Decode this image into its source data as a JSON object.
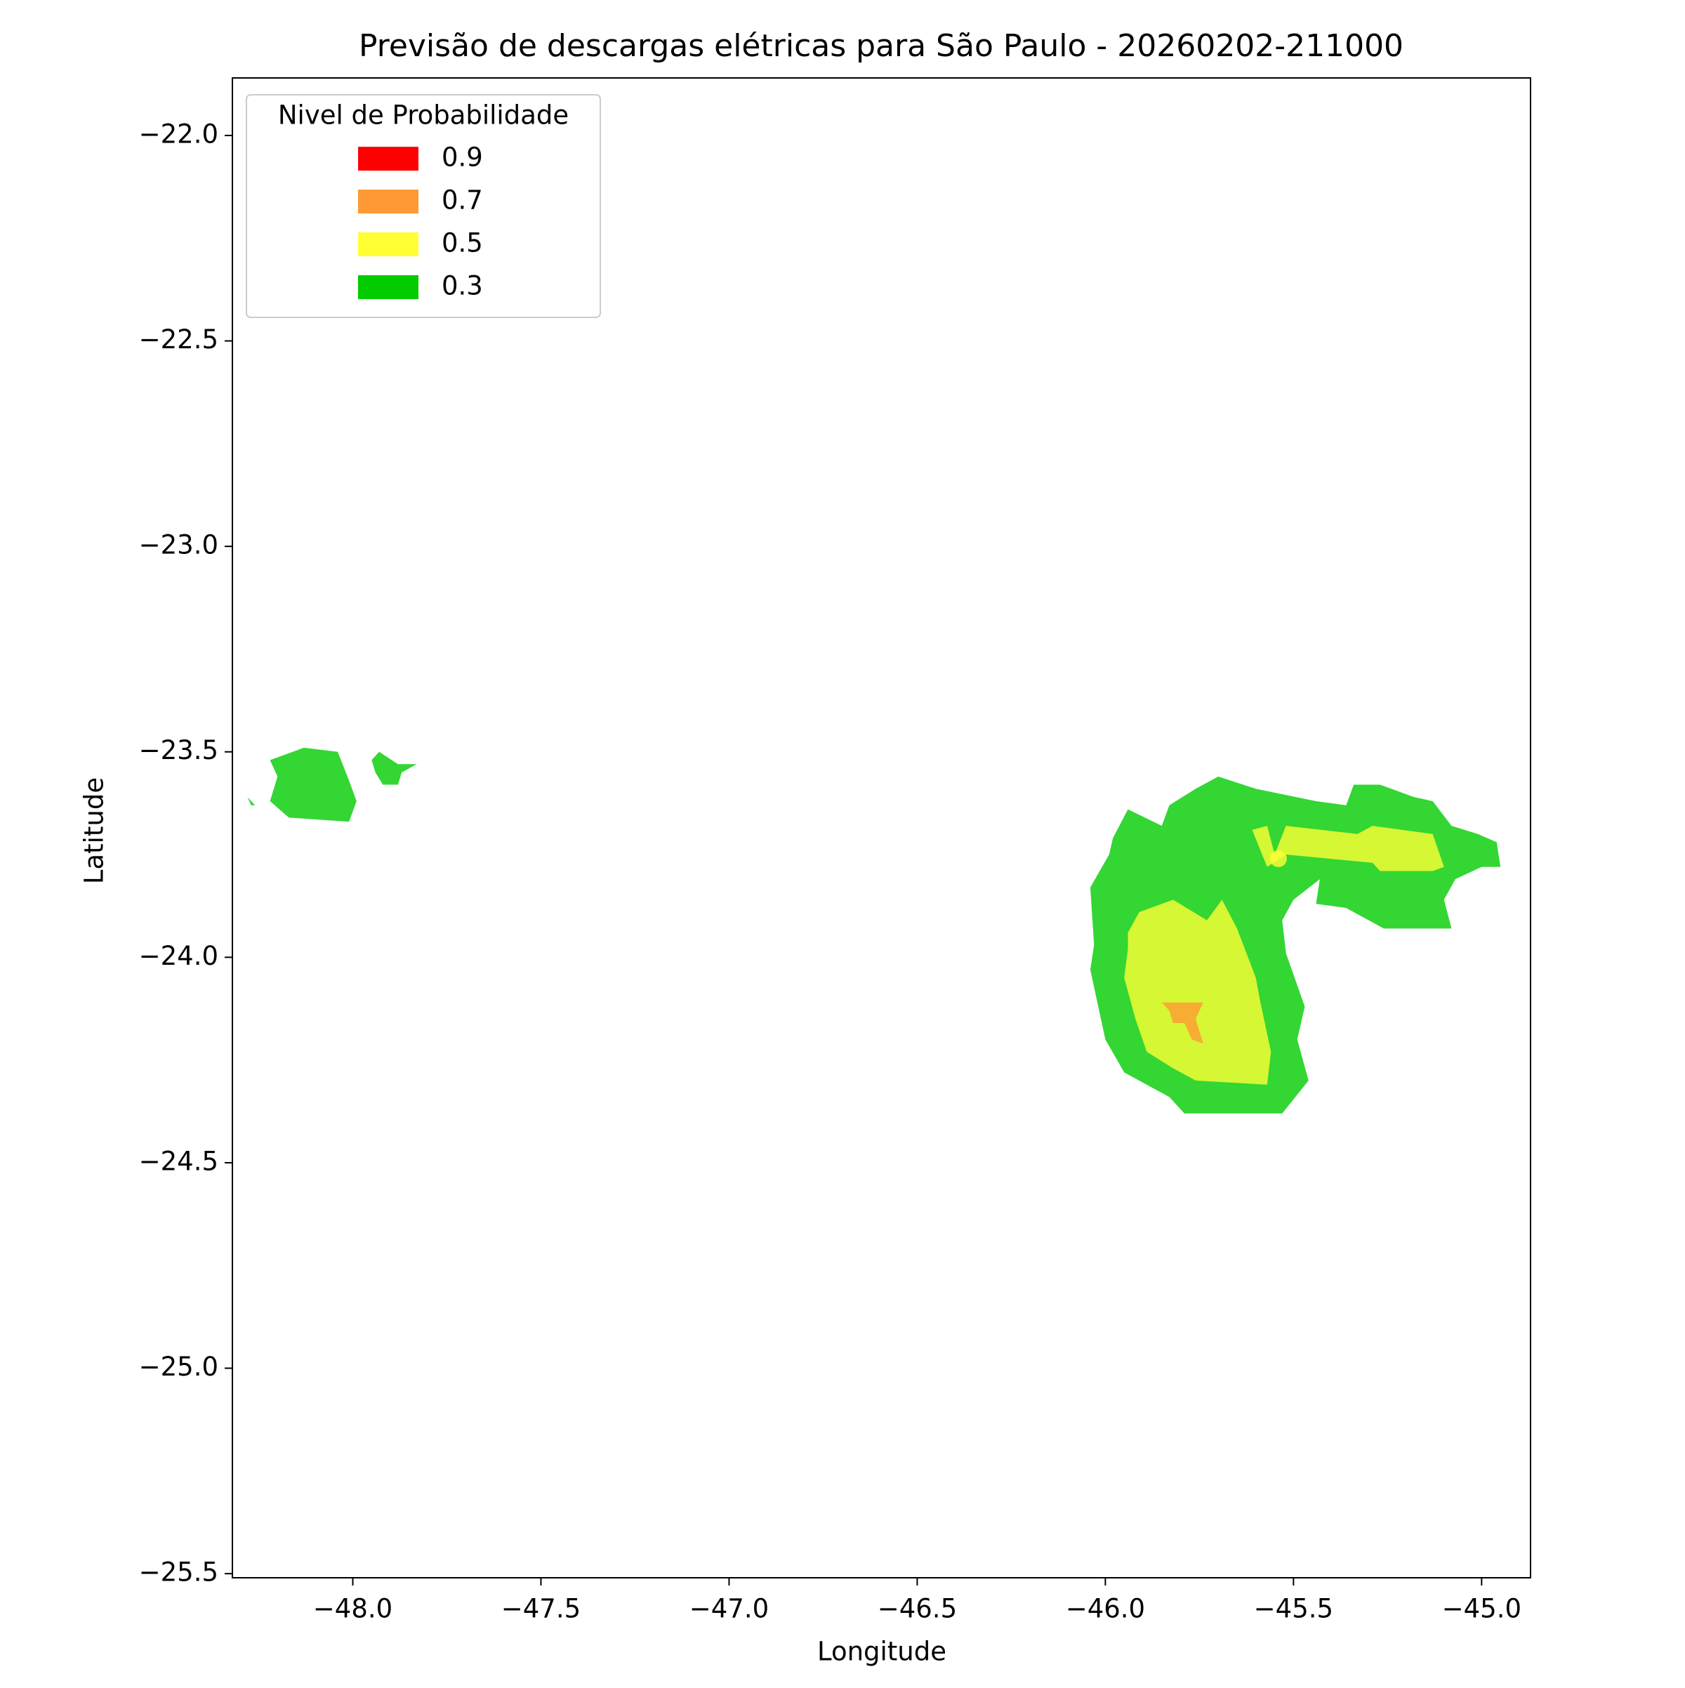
{
  "chart_data": {
    "type": "contour",
    "title": "Previsão de descargas elétricas para São Paulo - 20260202-211000",
    "xlabel": "Longitude",
    "ylabel": "Latitude",
    "xlim": [
      -48.32,
      -44.87
    ],
    "ylim": [
      -25.51,
      -21.86
    ],
    "xticks": [
      {
        "value": -48.0,
        "label": "−48.0"
      },
      {
        "value": -47.5,
        "label": "−47.5"
      },
      {
        "value": -47.0,
        "label": "−47.0"
      },
      {
        "value": -46.5,
        "label": "−46.5"
      },
      {
        "value": -46.0,
        "label": "−46.0"
      },
      {
        "value": -45.5,
        "label": "−45.5"
      },
      {
        "value": -45.0,
        "label": "−45.0"
      }
    ],
    "yticks": [
      {
        "value": -22.0,
        "label": "−22.0"
      },
      {
        "value": -22.5,
        "label": "−22.5"
      },
      {
        "value": -23.0,
        "label": "−23.0"
      },
      {
        "value": -23.5,
        "label": "−23.5"
      },
      {
        "value": -24.0,
        "label": "−24.0"
      },
      {
        "value": -24.5,
        "label": "−24.5"
      },
      {
        "value": -25.0,
        "label": "−25.0"
      },
      {
        "value": -25.5,
        "label": "−25.5"
      }
    ],
    "legend_title": "Nivel de Probabilidade",
    "legend": "upper left",
    "alpha": 0.8,
    "series": [
      {
        "name": "0.9",
        "color": "#ff0000",
        "polygons": [],
        "points": []
      },
      {
        "name": "0.7",
        "color": "#ff9933",
        "polygons": [
          [
            [
              -45.85,
              -24.11
            ],
            [
              -45.74,
              -24.11
            ],
            [
              -45.76,
              -24.15
            ],
            [
              -45.74,
              -24.21
            ],
            [
              -45.77,
              -24.2
            ],
            [
              -45.79,
              -24.16
            ],
            [
              -45.82,
              -24.16
            ],
            [
              -45.83,
              -24.13
            ]
          ]
        ],
        "points": []
      },
      {
        "name": "0.5",
        "color": "#ffff33",
        "polygons": [
          [
            [
              -45.94,
              -23.94
            ],
            [
              -45.91,
              -23.89
            ],
            [
              -45.82,
              -23.86
            ],
            [
              -45.73,
              -23.91
            ],
            [
              -45.69,
              -23.86
            ],
            [
              -45.65,
              -23.93
            ],
            [
              -45.6,
              -24.05
            ],
            [
              -45.59,
              -24.1
            ],
            [
              -45.56,
              -24.23
            ],
            [
              -45.57,
              -24.31
            ],
            [
              -45.76,
              -24.3
            ],
            [
              -45.82,
              -24.27
            ],
            [
              -45.89,
              -24.23
            ],
            [
              -45.92,
              -24.15
            ],
            [
              -45.95,
              -24.05
            ],
            [
              -45.94,
              -23.98
            ]
          ],
          [
            [
              -45.61,
              -23.69
            ],
            [
              -45.57,
              -23.68
            ],
            [
              -45.55,
              -23.75
            ],
            [
              -45.52,
              -23.68
            ],
            [
              -45.33,
              -23.7
            ],
            [
              -45.29,
              -23.68
            ],
            [
              -45.13,
              -23.7
            ],
            [
              -45.1,
              -23.78
            ],
            [
              -45.13,
              -23.79
            ],
            [
              -45.27,
              -23.79
            ],
            [
              -45.29,
              -23.77
            ],
            [
              -45.52,
              -23.75
            ],
            [
              -45.57,
              -23.78
            ]
          ]
        ],
        "points": [
          [
            -45.54,
            -23.76
          ]
        ]
      },
      {
        "name": "0.3",
        "color": "#00cc00",
        "polygons": [
          [
            [
              -45.99,
              -23.75
            ],
            [
              -46.04,
              -23.83
            ],
            [
              -46.03,
              -23.97
            ],
            [
              -46.04,
              -24.03
            ],
            [
              -46.0,
              -24.2
            ],
            [
              -45.95,
              -24.28
            ],
            [
              -45.83,
              -24.34
            ],
            [
              -45.79,
              -24.38
            ],
            [
              -45.53,
              -24.38
            ],
            [
              -45.46,
              -24.3
            ],
            [
              -45.49,
              -24.2
            ],
            [
              -45.47,
              -24.12
            ],
            [
              -45.52,
              -23.99
            ],
            [
              -45.53,
              -23.91
            ],
            [
              -45.5,
              -23.86
            ],
            [
              -45.43,
              -23.81
            ],
            [
              -45.44,
              -23.87
            ],
            [
              -45.36,
              -23.88
            ],
            [
              -45.26,
              -23.93
            ],
            [
              -45.08,
              -23.93
            ],
            [
              -45.1,
              -23.86
            ],
            [
              -45.07,
              -23.81
            ],
            [
              -45.0,
              -23.78
            ],
            [
              -44.95,
              -23.78
            ],
            [
              -44.96,
              -23.72
            ],
            [
              -45.01,
              -23.7
            ],
            [
              -45.08,
              -23.68
            ],
            [
              -45.13,
              -23.62
            ],
            [
              -45.18,
              -23.61
            ],
            [
              -45.27,
              -23.58
            ],
            [
              -45.34,
              -23.58
            ],
            [
              -45.36,
              -23.63
            ],
            [
              -45.44,
              -23.62
            ],
            [
              -45.6,
              -23.59
            ],
            [
              -45.7,
              -23.56
            ],
            [
              -45.76,
              -23.59
            ],
            [
              -45.83,
              -23.63
            ],
            [
              -45.85,
              -23.68
            ],
            [
              -45.94,
              -23.64
            ],
            [
              -45.98,
              -23.71
            ]
          ],
          [
            [
              -48.22,
              -23.52
            ],
            [
              -48.13,
              -23.49
            ],
            [
              -48.04,
              -23.5
            ],
            [
              -48.01,
              -23.57
            ],
            [
              -47.99,
              -23.62
            ],
            [
              -48.01,
              -23.67
            ],
            [
              -48.17,
              -23.66
            ],
            [
              -48.22,
              -23.62
            ],
            [
              -48.2,
              -23.56
            ]
          ],
          [
            [
              -47.95,
              -23.52
            ],
            [
              -47.93,
              -23.5
            ],
            [
              -47.88,
              -23.53
            ],
            [
              -47.83,
              -23.53
            ],
            [
              -47.87,
              -23.55
            ],
            [
              -47.88,
              -23.58
            ],
            [
              -47.92,
              -23.58
            ],
            [
              -47.94,
              -23.55
            ]
          ],
          [
            [
              -48.3,
              -23.57
            ],
            [
              -48.28,
              -23.61
            ],
            [
              -48.26,
              -23.63
            ],
            [
              -48.27,
              -23.63
            ]
          ]
        ],
        "points": []
      }
    ]
  }
}
